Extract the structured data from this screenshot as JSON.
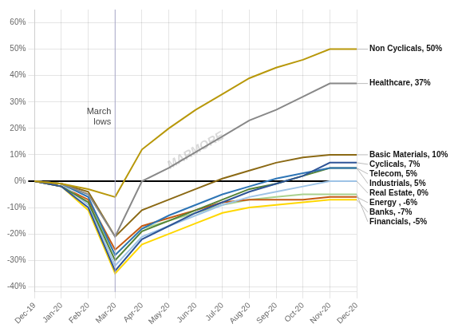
{
  "chart_data": {
    "type": "line",
    "categories": [
      "Dec-19",
      "Jan-20",
      "Feb-20",
      "Mar-20",
      "Apr-20",
      "May-20",
      "Jun-20",
      "Jul-20",
      "Aug-20",
      "Sep-20",
      "Oct-20",
      "Nov-20",
      "Dec-20"
    ],
    "series": [
      {
        "name": "Non Cyclicals, 50%",
        "color": "#b8980a",
        "values": [
          0,
          -0.01,
          -0.03,
          -0.06,
          0.12,
          0.2,
          0.27,
          0.33,
          0.39,
          0.43,
          0.46,
          0.5,
          0.5
        ]
      },
      {
        "name": "Healthcare, 37%",
        "color": "#888888",
        "values": [
          0,
          -0.01,
          -0.05,
          -0.21,
          0.0,
          0.05,
          0.11,
          0.17,
          0.23,
          0.27,
          0.32,
          0.37,
          0.37
        ]
      },
      {
        "name": "Basic Materials, 10%",
        "color": "#8B6914",
        "values": [
          0,
          -0.01,
          -0.04,
          -0.21,
          -0.11,
          -0.07,
          -0.03,
          0.01,
          0.04,
          0.07,
          0.09,
          0.1,
          0.1
        ]
      },
      {
        "name": "Cyclicals, 7%",
        "color": "#2F5597",
        "values": [
          0,
          -0.02,
          -0.1,
          -0.34,
          -0.22,
          -0.17,
          -0.12,
          -0.08,
          -0.04,
          -0.01,
          0.02,
          0.07,
          0.07
        ]
      },
      {
        "name": "Telecom, 5%",
        "color": "#2E75B6",
        "values": [
          0,
          -0.01,
          -0.06,
          -0.28,
          -0.18,
          -0.13,
          -0.09,
          -0.05,
          -0.02,
          0.01,
          0.03,
          0.05,
          0.05
        ]
      },
      {
        "name": "Industrials, 5%",
        "color": "#548235",
        "values": [
          0,
          -0.02,
          -0.08,
          -0.3,
          -0.19,
          -0.15,
          -0.11,
          -0.07,
          -0.03,
          -0.01,
          0.02,
          0.05,
          0.05
        ]
      },
      {
        "name": "Real Estate, 0%",
        "color": "#9DC3E6",
        "values": [
          0,
          -0.01,
          -0.09,
          -0.32,
          -0.21,
          -0.17,
          -0.13,
          -0.09,
          -0.06,
          -0.04,
          -0.02,
          0.0,
          0.0
        ]
      },
      {
        "name": "Energy , -6%",
        "color": "#C55A11",
        "values": [
          0,
          -0.02,
          -0.07,
          -0.26,
          -0.17,
          -0.14,
          -0.11,
          -0.08,
          -0.07,
          -0.07,
          -0.07,
          -0.06,
          -0.06
        ]
      },
      {
        "name": "Banks, -7%",
        "color": "#FFD700",
        "values": [
          0,
          -0.02,
          -0.11,
          -0.35,
          -0.24,
          -0.2,
          -0.16,
          -0.12,
          -0.1,
          -0.09,
          -0.08,
          -0.07,
          -0.07
        ]
      },
      {
        "name": "Financials, -5%",
        "color": "#A9D18E",
        "values": [
          0,
          -0.02,
          -0.08,
          -0.28,
          -0.18,
          -0.15,
          -0.12,
          -0.09,
          -0.07,
          -0.06,
          -0.05,
          -0.05,
          -0.05
        ]
      }
    ],
    "ylim": [
      -0.42,
      0.65
    ],
    "yticks": [
      {
        "value": -0.4,
        "label": "-40%"
      },
      {
        "value": -0.3,
        "label": "-30%"
      },
      {
        "value": -0.2,
        "label": "-20%"
      },
      {
        "value": -0.1,
        "label": "-10%"
      },
      {
        "value": 0,
        "label": "0%"
      },
      {
        "value": 0.1,
        "label": "10%"
      },
      {
        "value": 0.2,
        "label": "20%"
      },
      {
        "value": 0.3,
        "label": "30%"
      },
      {
        "value": 0.4,
        "label": "40%"
      },
      {
        "value": 0.5,
        "label": "50%"
      },
      {
        "value": 0.6,
        "label": "60%"
      }
    ],
    "grid": true,
    "annotations": [
      {
        "text": "March\nlows",
        "x": "Mar-20"
      },
      {
        "text": "MARMORE"
      }
    ]
  }
}
